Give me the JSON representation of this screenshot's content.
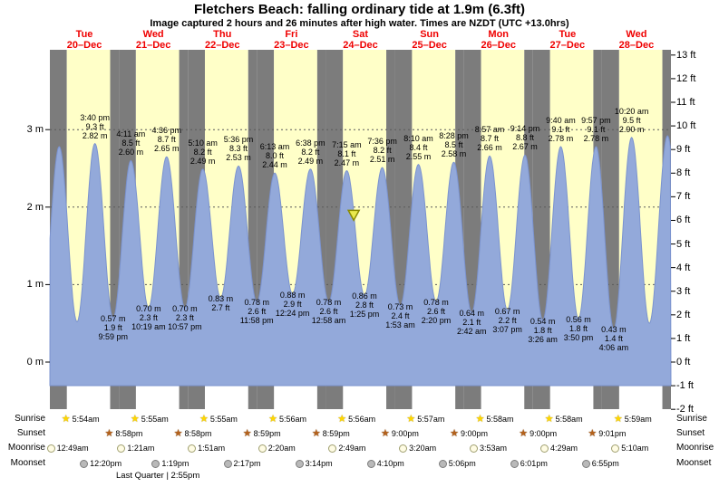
{
  "title": "Fletchers Beach: falling ordinary tide at 1.9m (6.3ft)",
  "subtitle": "Image captured 2 hours and 26 minutes after high water. Times are NZDT (UTC +13.0hrs)",
  "day_labels": [
    {
      "dow": "Tue",
      "date": "20–Dec"
    },
    {
      "dow": "Wed",
      "date": "21–Dec"
    },
    {
      "dow": "Thu",
      "date": "22–Dec"
    },
    {
      "dow": "Fri",
      "date": "23–Dec"
    },
    {
      "dow": "Sat",
      "date": "24–Dec"
    },
    {
      "dow": "Sun",
      "date": "25–Dec"
    },
    {
      "dow": "Mon",
      "date": "26–Dec"
    },
    {
      "dow": "Tue",
      "date": "27–Dec"
    },
    {
      "dow": "Wed",
      "date": "28–Dec"
    }
  ],
  "axis": {
    "left": [
      "3 m",
      "2 m",
      "1 m",
      "0 m"
    ],
    "right": [
      "13 ft",
      "12 ft",
      "11 ft",
      "10 ft",
      "9 ft",
      "8 ft",
      "7 ft",
      "6 ft",
      "5 ft",
      "4 ft",
      "3 ft",
      "2 ft",
      "1 ft",
      "0 ft",
      "-1 ft",
      "-2 ft"
    ]
  },
  "chart_data": {
    "type": "area",
    "title": "Fletchers Beach tide curve, Dec 20 – Dec 28",
    "x_axis": "time (9 days, Tue 20-Dec to Wed 28-Dec)",
    "y_axis_left": "meters (0–3 m labeled)",
    "y_axis_right": "feet (-2 to 13 ft labeled)",
    "colors": {
      "day": "#ffffc8",
      "night": "#7c7c7c",
      "water": "#93a9da",
      "water_edge": "#7b93cf",
      "day_label_red": "#ef0000",
      "marker_fill": "#e9e94d",
      "marker_edge": "#8a8a00"
    },
    "current_marker": {
      "t": 105.68,
      "h": 1.9,
      "note": "falling tide at 1.9m (6.3ft)"
    },
    "tide_events": [
      {
        "kind": "low",
        "t": -2.9,
        "h": 0.55
      },
      {
        "kind": "high",
        "t": 3.25,
        "h": 2.78
      },
      {
        "kind": "low",
        "t": 9.45,
        "h": 0.52
      },
      {
        "kind": "high",
        "t": 15.67,
        "h": 2.82,
        "time": "3:40 pm",
        "ft": "9.3 ft",
        "m": "2.82 m"
      },
      {
        "kind": "low",
        "t": 21.98,
        "h": 0.57,
        "m": "0.57 m",
        "ft": "1.9 ft",
        "time": "9:59 pm"
      },
      {
        "kind": "high",
        "t": 28.18,
        "h": 2.6,
        "time": "4:11 am",
        "ft": "8.5 ft",
        "m": "2.60 m"
      },
      {
        "kind": "low",
        "t": 34.32,
        "h": 0.7,
        "m": "0.70 m",
        "ft": "2.3 ft",
        "time": "10:19 am"
      },
      {
        "kind": "high",
        "t": 40.6,
        "h": 2.65,
        "time": "4:36 pm",
        "ft": "8.7 ft",
        "m": "2.65 m"
      },
      {
        "kind": "low",
        "t": 46.95,
        "h": 0.7,
        "m": "0.70 m",
        "ft": "2.3 ft",
        "time": "10:57 pm"
      },
      {
        "kind": "high",
        "t": 53.17,
        "h": 2.49,
        "time": "5:10 am",
        "ft": "8.2 ft",
        "m": "2.49 m"
      },
      {
        "kind": "low",
        "t": 59.4,
        "h": 0.83,
        "m": "0.83 m",
        "ft": "2.7 ft",
        "time": ""
      },
      {
        "kind": "high",
        "t": 65.6,
        "h": 2.53,
        "time": "5:36 pm",
        "ft": "8.3 ft",
        "m": "2.53 m"
      },
      {
        "kind": "low",
        "t": 71.97,
        "h": 0.78,
        "m": "0.78 m",
        "ft": "2.6 ft",
        "time": "11:58 pm"
      },
      {
        "kind": "high",
        "t": 78.22,
        "h": 2.44,
        "time": "6:13 am",
        "ft": "8.0 ft",
        "m": "2.44 m"
      },
      {
        "kind": "low",
        "t": 84.4,
        "h": 0.88,
        "m": "0.88 m",
        "ft": "2.9 ft",
        "time": "12:24 pm"
      },
      {
        "kind": "high",
        "t": 90.63,
        "h": 2.49,
        "time": "6:38 pm",
        "ft": "8.2 ft",
        "m": "2.49 m"
      },
      {
        "kind": "low",
        "t": 96.97,
        "h": 0.78,
        "m": "0.78 m",
        "ft": "2.6 ft",
        "time": "12:58 am"
      },
      {
        "kind": "high",
        "t": 103.25,
        "h": 2.47,
        "time": "7:15 am",
        "ft": "8.1 ft",
        "m": "2.47 m"
      },
      {
        "kind": "low",
        "t": 109.42,
        "h": 0.86,
        "m": "0.86 m",
        "ft": "2.8 ft",
        "time": "1:25 pm"
      },
      {
        "kind": "high",
        "t": 115.6,
        "h": 2.51,
        "time": "7:36 pm",
        "ft": "8.2 ft",
        "m": "2.51 m"
      },
      {
        "kind": "low",
        "t": 121.88,
        "h": 0.73,
        "m": "0.73 m",
        "ft": "2.4 ft",
        "time": "1:53 am"
      },
      {
        "kind": "high",
        "t": 128.17,
        "h": 2.55,
        "time": "8:10 am",
        "ft": "8.4 ft",
        "m": "2.55 m"
      },
      {
        "kind": "low",
        "t": 134.33,
        "h": 0.78,
        "m": "0.78 m",
        "ft": "2.6 ft",
        "time": "2:20 pm"
      },
      {
        "kind": "high",
        "t": 140.47,
        "h": 2.58,
        "time": "8:28 pm",
        "ft": "8.5 ft",
        "m": "2.58 m"
      },
      {
        "kind": "low",
        "t": 146.7,
        "h": 0.64,
        "m": "0.64 m",
        "ft": "2.1 ft",
        "time": "2:42 am"
      },
      {
        "kind": "high",
        "t": 152.95,
        "h": 2.66,
        "time": "8:57 am",
        "ft": "8.7 ft",
        "m": "2.66 m"
      },
      {
        "kind": "low",
        "t": 159.12,
        "h": 0.67,
        "m": "0.67 m",
        "ft": "2.2 ft",
        "time": "3:07 pm"
      },
      {
        "kind": "high",
        "t": 165.23,
        "h": 2.67,
        "time": "9:14 pm",
        "ft": "8.8 ft",
        "m": "2.67 m"
      },
      {
        "kind": "low",
        "t": 171.43,
        "h": 0.54,
        "m": "0.54 m",
        "ft": "1.8 ft",
        "time": "3:26 am"
      },
      {
        "kind": "high",
        "t": 177.67,
        "h": 2.78,
        "time": "9:40 am",
        "ft": "9.1 ft",
        "m": "2.78 m"
      },
      {
        "kind": "low",
        "t": 183.83,
        "h": 0.56,
        "m": "0.56 m",
        "ft": "1.8 ft",
        "time": "3:50 pm"
      },
      {
        "kind": "high",
        "t": 189.95,
        "h": 2.78,
        "time": "9:57 pm",
        "ft": "9.1 ft",
        "m": "2.78 m"
      },
      {
        "kind": "low",
        "t": 196.1,
        "h": 0.43,
        "m": "0.43 m",
        "ft": "1.4 ft",
        "time": "4:06 am"
      },
      {
        "kind": "high",
        "t": 202.33,
        "h": 2.9,
        "time": "10:20 am",
        "ft": "9.5 ft",
        "m": "2.90 m"
      },
      {
        "kind": "low",
        "t": 208.5,
        "h": 0.5
      },
      {
        "kind": "high",
        "t": 214.8,
        "h": 2.92
      },
      {
        "kind": "low",
        "t": 221.0,
        "h": 0.52
      }
    ]
  },
  "astro": {
    "rows": [
      {
        "name": "Sunrise",
        "icon": "sunrise-star-icon",
        "entries": [
          {
            "time": "5:54am"
          },
          {
            "time": "5:55am"
          },
          {
            "time": "5:55am"
          },
          {
            "time": "5:56am"
          },
          {
            "time": "5:56am"
          },
          {
            "time": "5:57am"
          },
          {
            "time": "5:58am"
          },
          {
            "time": "5:58am"
          },
          {
            "time": "5:59am"
          }
        ]
      },
      {
        "name": "Sunset",
        "icon": "sunset-star-icon",
        "entries": [
          {
            "time": "8:58pm"
          },
          {
            "time": "8:58pm"
          },
          {
            "time": "8:59pm"
          },
          {
            "time": "8:59pm"
          },
          {
            "time": "9:00pm"
          },
          {
            "time": "9:00pm"
          },
          {
            "time": "9:00pm"
          },
          {
            "time": "9:01pm"
          }
        ]
      },
      {
        "name": "Moonrise",
        "icon": "moonrise-moon-icon",
        "entries": [
          {
            "time": "12:49am"
          },
          {
            "time": "1:21am"
          },
          {
            "time": "1:51am"
          },
          {
            "time": "2:20am"
          },
          {
            "time": "2:49am"
          },
          {
            "time": "3:20am"
          },
          {
            "time": "3:53am"
          },
          {
            "time": "4:29am"
          },
          {
            "time": "5:10am"
          }
        ]
      },
      {
        "name": "Moonset",
        "icon": "moonset-moon-icon",
        "entries": [
          {
            "time": "12:20pm"
          },
          {
            "time": "1:19pm"
          },
          {
            "time": "2:17pm"
          },
          {
            "time": "3:14pm"
          },
          {
            "time": "4:10pm"
          },
          {
            "time": "5:06pm"
          },
          {
            "time": "6:01pm"
          },
          {
            "time": "6:55pm"
          }
        ]
      }
    ],
    "moon_phase": "Last Quarter | 2:55pm"
  }
}
